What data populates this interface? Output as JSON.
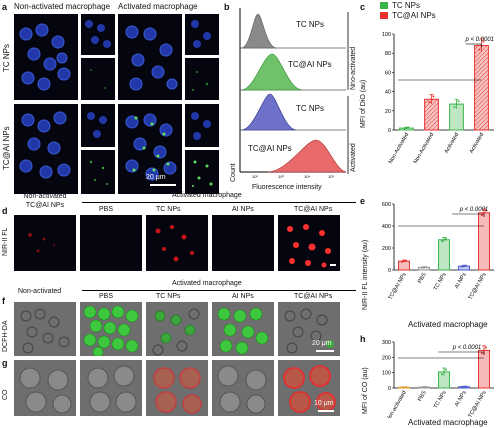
{
  "panel_a": {
    "letter": "a",
    "col_non": "Non-activated macrophage",
    "col_act": "Activated macrophage",
    "row_tc": "TC NPs",
    "row_tcai": "TC@AI NPs",
    "scale": "20 μm"
  },
  "panel_b": {
    "letter": "b",
    "xlabel": "Fluorescence intensity",
    "ylabel": "Count",
    "group_top": "Nno-activated",
    "group_bottom": "Activated",
    "chart_data": {
      "type": "histogram",
      "series": [
        {
          "name": "TC NPs",
          "group": "Nno-activated",
          "color": "#8a8a8a"
        },
        {
          "name": "TC@AI NPs",
          "group": "Nno-activated",
          "color": "#6fc26a"
        },
        {
          "name": "TC NPs",
          "group": "Activated",
          "color": "#6d72c8"
        },
        {
          "name": "TC@AI NPs",
          "group": "Activated",
          "color": "#e96a6a"
        }
      ]
    }
  },
  "panel_c": {
    "letter": "c",
    "ylabel": "MFI of DiO (au)",
    "pvalue": "p < 0.0001",
    "legend": [
      {
        "name": "TC NPs",
        "color": "#3cb44b"
      },
      {
        "name": "TC@AI NPs",
        "color": "#e8312f"
      }
    ],
    "chart_data": {
      "type": "bar",
      "categories": [
        "Non-Activated",
        "Non-Activated",
        "Activated",
        "Activated"
      ],
      "values": [
        2,
        32,
        27,
        88
      ],
      "errors": [
        1,
        5,
        5,
        7
      ],
      "hatched": [
        false,
        true,
        false,
        true
      ],
      "colors": [
        "#3cb44b",
        "#e8312f",
        "#3cb44b",
        "#e8312f"
      ],
      "ylim": [
        0,
        100
      ],
      "yticks": [
        0,
        20,
        40,
        60,
        80,
        100
      ]
    }
  },
  "panel_d": {
    "letter": "d",
    "header": "Activated macrophage",
    "row": "NIR-II FL",
    "cols": [
      "Non-activated\nTC@AI NPs",
      "PBS",
      "TC NPs",
      "AI NPs",
      "TC@AI NPs"
    ]
  },
  "panel_e": {
    "letter": "e",
    "ylabel": "NIR-II FL intensity (au)",
    "pvalue": "p < 0.0001",
    "group": "Activated macrophage",
    "chart_data": {
      "type": "bar",
      "categories": [
        "TC@AI NPs",
        "PBS",
        "TC NPs",
        "AI NPs",
        "TC@AI NPs"
      ],
      "values": [
        80,
        25,
        275,
        35,
        520
      ],
      "errors": [
        10,
        5,
        20,
        8,
        35
      ],
      "colors": [
        "#e8312f",
        "#9a9a9a",
        "#3cb44b",
        "#4a5bd0",
        "#e8312f"
      ],
      "ylim": [
        0,
        600
      ],
      "yticks": [
        0,
        200,
        400,
        600
      ]
    }
  },
  "panel_f": {
    "letter": "f",
    "header": "Activated macrophage",
    "row": "DCFH-DA",
    "cols": [
      "Non-activated",
      "PBS",
      "TC NPs",
      "AI NPs",
      "TC@AI NPs"
    ],
    "scale": "20 μm"
  },
  "panel_g": {
    "letter": "g",
    "row": "CO",
    "scale": "10 μm"
  },
  "panel_h": {
    "letter": "h",
    "ylabel": "MFI of CO (au)",
    "pvalue": "p < 0.0001",
    "group": "Activated macrophage",
    "chart_data": {
      "type": "bar",
      "categories": [
        "Non-activated",
        "PBS",
        "TC NPs",
        "AI NPs",
        "TC@AI NPs"
      ],
      "values": [
        5,
        6,
        105,
        8,
        245
      ],
      "errors": [
        2,
        3,
        25,
        3,
        30
      ],
      "colors": [
        "#e0a030",
        "#9a9a9a",
        "#3cb44b",
        "#4a5bd0",
        "#e8312f"
      ],
      "ylim": [
        0,
        300
      ],
      "yticks": [
        0,
        100,
        200,
        300
      ]
    }
  }
}
